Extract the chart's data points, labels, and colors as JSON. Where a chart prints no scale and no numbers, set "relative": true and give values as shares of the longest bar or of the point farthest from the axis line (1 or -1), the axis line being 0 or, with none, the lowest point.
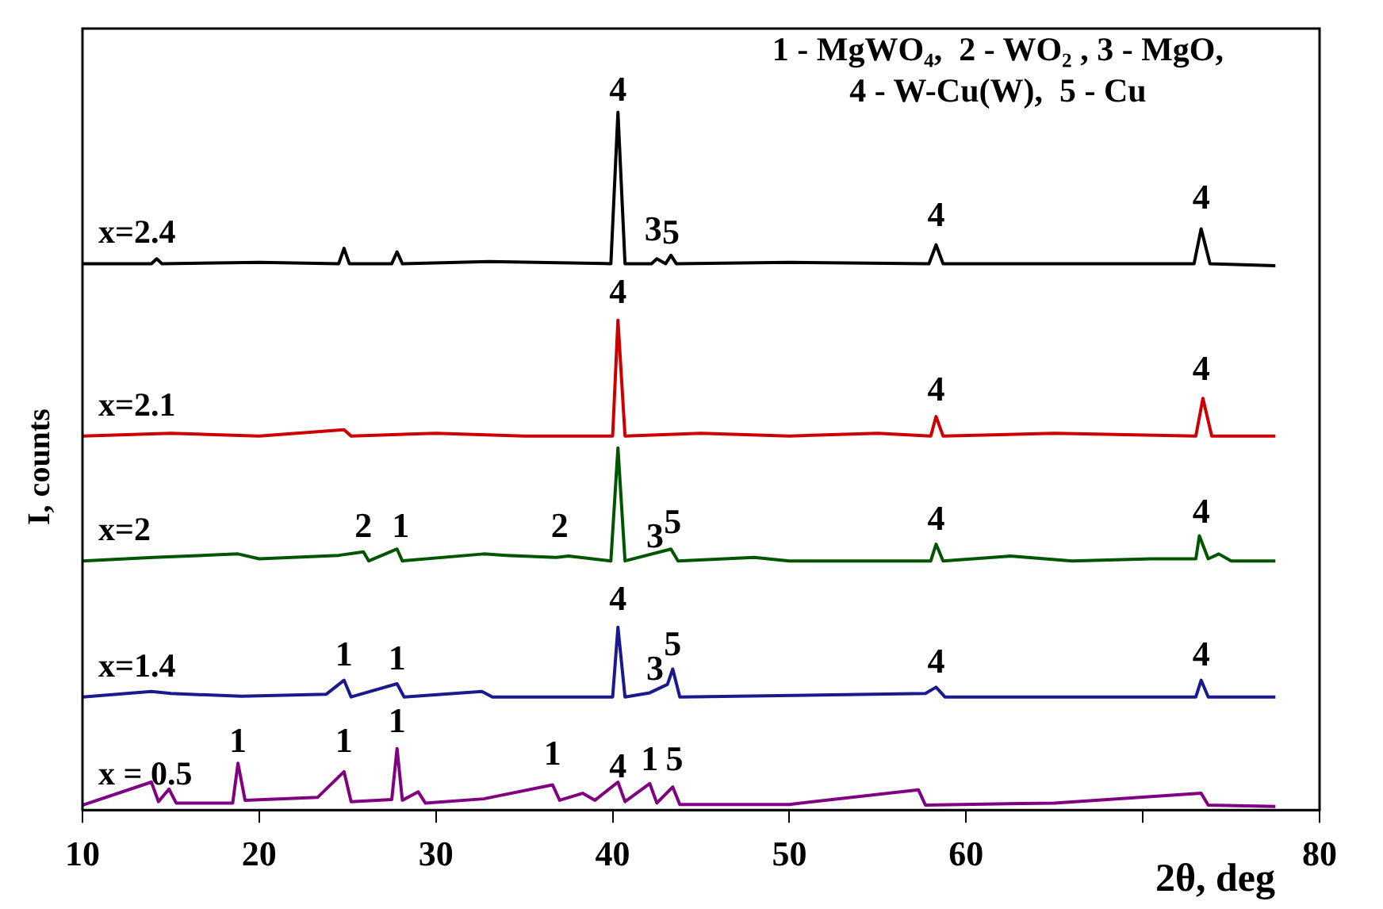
{
  "chart_data": {
    "type": "line",
    "relative": true,
    "xlabel": "2θ, deg",
    "ylabel": "I, counts",
    "xlim": [
      10,
      80
    ],
    "xticks": [
      10,
      20,
      30,
      40,
      50,
      60,
      {
        "value": 70,
        "label": null
      },
      80
    ],
    "grid": false,
    "legend": false,
    "marker": "none",
    "line_style": "solid",
    "series": [
      {
        "name": "x=2.4",
        "color": "#000000",
        "x": [
          10,
          13.9,
          14.2,
          14.5,
          20,
          24.5,
          24.8,
          25.1,
          27.5,
          27.8,
          28.1,
          33,
          39.9,
          40.3,
          40.7,
          42.2,
          42.5,
          43,
          43.3,
          43.6,
          50,
          57.9,
          58.3,
          58.7,
          72.9,
          73.3,
          73.8,
          77.5
        ],
        "values": [
          0.783,
          0.783,
          0.79,
          0.783,
          0.785,
          0.783,
          0.805,
          0.783,
          0.783,
          0.8,
          0.783,
          0.786,
          0.783,
          1.0,
          0.783,
          0.783,
          0.79,
          0.783,
          0.795,
          0.783,
          0.785,
          0.783,
          0.81,
          0.783,
          0.783,
          0.833,
          0.783,
          0.78
        ]
      },
      {
        "name": "x=2.1",
        "color": "#cc0000",
        "x": [
          10,
          15,
          20,
          24.8,
          25.2,
          30,
          35,
          40,
          40.3,
          40.7,
          45,
          50,
          55,
          58,
          58.3,
          58.7,
          65,
          73,
          73.4,
          73.9,
          77.5
        ],
        "values": [
          0.536,
          0.54,
          0.536,
          0.545,
          0.536,
          0.54,
          0.536,
          0.536,
          0.702,
          0.536,
          0.54,
          0.536,
          0.54,
          0.536,
          0.564,
          0.536,
          0.54,
          0.536,
          0.59,
          0.536,
          0.536
        ]
      },
      {
        "name": "x=2",
        "color": "#005500",
        "x": [
          10,
          14,
          18.8,
          20,
          24.5,
          25.9,
          26.2,
          27.8,
          28.1,
          32.7,
          34,
          36.8,
          37.5,
          39.9,
          40.3,
          40.7,
          43.3,
          43.7,
          48,
          50,
          58,
          58.3,
          58.7,
          62.5,
          66,
          70.5,
          73,
          73.2,
          73.7,
          74.3,
          75,
          77.5
        ],
        "values": [
          0.357,
          0.362,
          0.367,
          0.36,
          0.365,
          0.37,
          0.357,
          0.374,
          0.357,
          0.367,
          0.365,
          0.362,
          0.364,
          0.357,
          0.519,
          0.357,
          0.374,
          0.357,
          0.362,
          0.357,
          0.357,
          0.381,
          0.357,
          0.364,
          0.357,
          0.36,
          0.36,
          0.393,
          0.36,
          0.367,
          0.357,
          0.357
        ]
      },
      {
        "name": "x=1.4",
        "color": "#1a1a8c",
        "x": [
          10,
          13.9,
          15,
          19,
          23.8,
          24.8,
          25.2,
          27.8,
          28.2,
          32.6,
          33.2,
          40,
          40.3,
          40.7,
          42.1,
          43.1,
          43.4,
          43.8,
          57.7,
          58.3,
          58.8,
          73,
          73.3,
          73.7,
          77.5
        ],
        "values": [
          0.162,
          0.17,
          0.167,
          0.163,
          0.166,
          0.186,
          0.162,
          0.181,
          0.162,
          0.17,
          0.162,
          0.162,
          0.262,
          0.162,
          0.168,
          0.18,
          0.202,
          0.162,
          0.167,
          0.176,
          0.162,
          0.162,
          0.186,
          0.162,
          0.162
        ]
      },
      {
        "name": "x = 0.5",
        "color": "#800080",
        "x": [
          10,
          13.9,
          14.3,
          14.9,
          15.3,
          18.5,
          18.8,
          19.2,
          23.3,
          24.8,
          25.2,
          27.5,
          27.8,
          28.1,
          29,
          29.4,
          32.7,
          36.6,
          37,
          38.3,
          39,
          40.3,
          40.7,
          42.1,
          42.5,
          43.4,
          43.8,
          50,
          57.3,
          57.7,
          65,
          73.3,
          73.7,
          77.5
        ],
        "values": [
          0.007,
          0.04,
          0.012,
          0.03,
          0.01,
          0.01,
          0.067,
          0.014,
          0.018,
          0.055,
          0.012,
          0.015,
          0.088,
          0.014,
          0.026,
          0.01,
          0.016,
          0.036,
          0.014,
          0.024,
          0.014,
          0.04,
          0.012,
          0.038,
          0.01,
          0.033,
          0.008,
          0.008,
          0.029,
          0.007,
          0.01,
          0.024,
          0.007,
          0.005
        ]
      }
    ],
    "annotations": [
      "1 - MgWO₄,  2 - WO₂ , 3 - MgO,\n4 - W-Cu(W),  5 - Cu",
      {
        "text": "4",
        "x": 40.3,
        "y": 1.0
      },
      {
        "text": "3",
        "x": 42.3,
        "y": 0.8
      },
      {
        "text": "5",
        "x": 43.3,
        "y": 0.795
      },
      {
        "text": "4",
        "x": 58.3,
        "y": 0.82
      },
      {
        "text": "4",
        "x": 73.3,
        "y": 0.845
      },
      {
        "text": "4",
        "x": 40.3,
        "y": 0.71
      },
      {
        "text": "4",
        "x": 58.3,
        "y": 0.57
      },
      {
        "text": "4",
        "x": 73.3,
        "y": 0.6
      },
      {
        "text": "2",
        "x": 25.9,
        "y": 0.375
      },
      {
        "text": "1",
        "x": 28,
        "y": 0.375
      },
      {
        "text": "2",
        "x": 37,
        "y": 0.375
      },
      {
        "text": "3",
        "x": 42.4,
        "y": 0.36
      },
      {
        "text": "5",
        "x": 43.4,
        "y": 0.38
      },
      {
        "text": "4",
        "x": 58.3,
        "y": 0.385
      },
      {
        "text": "4",
        "x": 73.3,
        "y": 0.395
      },
      {
        "text": "1",
        "x": 24.8,
        "y": 0.19
      },
      {
        "text": "1",
        "x": 27.8,
        "y": 0.185
      },
      {
        "text": "4",
        "x": 40.3,
        "y": 0.27
      },
      {
        "text": "3",
        "x": 42.4,
        "y": 0.17
      },
      {
        "text": "5",
        "x": 43.4,
        "y": 0.205
      },
      {
        "text": "4",
        "x": 58.3,
        "y": 0.18
      },
      {
        "text": "4",
        "x": 73.3,
        "y": 0.19
      },
      {
        "text": "1",
        "x": 18.8,
        "y": 0.067
      },
      {
        "text": "1",
        "x": 24.8,
        "y": 0.067
      },
      {
        "text": "1",
        "x": 27.8,
        "y": 0.095
      },
      {
        "text": "1",
        "x": 36.6,
        "y": 0.048
      },
      {
        "text": "4",
        "x": 40.3,
        "y": 0.03
      },
      {
        "text": "1",
        "x": 42.1,
        "y": 0.04
      },
      {
        "text": "5",
        "x": 43.5,
        "y": 0.04
      }
    ]
  }
}
